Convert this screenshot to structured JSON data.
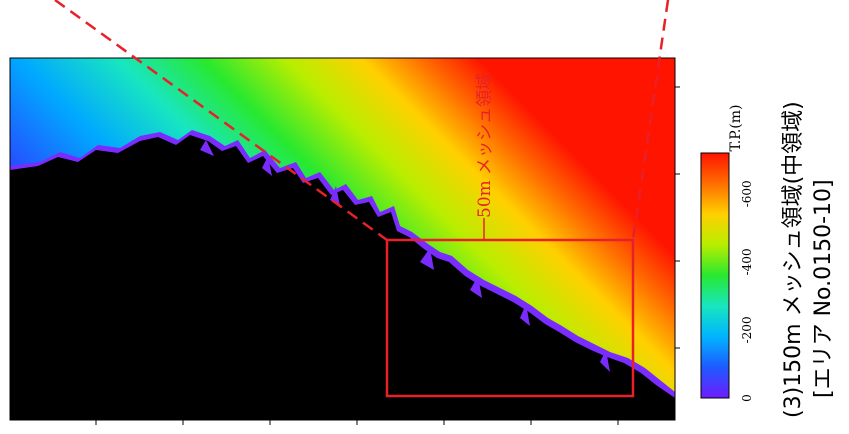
{
  "map": {
    "inset_label": "50m メッシュ領域",
    "legend_unit": "T.P.(m)",
    "legend_ticks": [
      "0",
      "-200",
      "-400",
      "-600"
    ],
    "legend_tick_values": [
      0,
      -200,
      -400,
      -600
    ],
    "legend_range": [
      -720,
      0
    ],
    "colors": {
      "land": "#000000",
      "inset_box": "#e8202a",
      "dashed_lines": "#e8202a",
      "ramp": [
        "#6f1cff",
        "#1e5aff",
        "#00b4ff",
        "#18e6c0",
        "#28e830",
        "#b8ee00",
        "#ffd000",
        "#ff6e00",
        "#ff1400"
      ]
    }
  },
  "caption": {
    "line1": "(3)150m メッシュ領域(中領域)",
    "line2": "[エリア No.0150-10]"
  }
}
